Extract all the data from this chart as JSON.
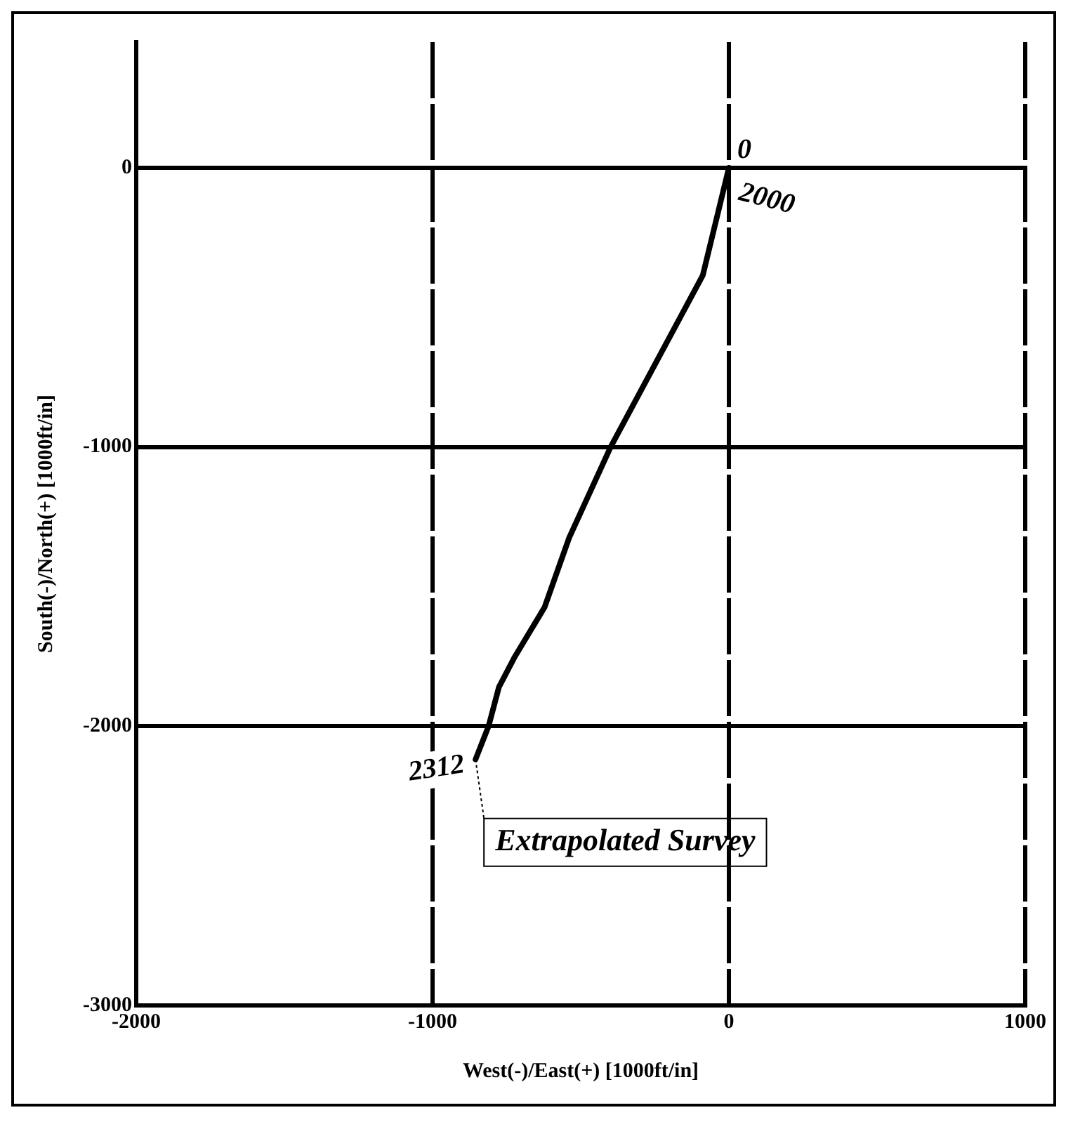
{
  "chart_data": {
    "type": "line",
    "xlabel": "West(-)/East(+) [1000ft/in]",
    "ylabel": "South(-)/North(+) [1000ft/in]",
    "x": [
      0,
      -88,
      -399,
      -539,
      -622,
      -725,
      -776,
      -811,
      -855
    ],
    "series": [
      {
        "color": "#000000",
        "values": [
          0,
          -385,
          -1000,
          -1325,
          -1574,
          -1756,
          -1860,
          -2000,
          -2119
        ]
      }
    ],
    "xlim": [
      -2000,
      1000
    ],
    "xticks": [
      -2000,
      -1000,
      0,
      1000
    ],
    "ylim": [
      -3000,
      450
    ],
    "yticks": [
      -3000,
      -2000,
      -1000,
      0
    ],
    "grid": true,
    "legend": false,
    "marker": "none",
    "line_style": "solid",
    "annotations": [
      "0",
      "2000",
      "2312",
      "Extrapolated Survey"
    ]
  }
}
